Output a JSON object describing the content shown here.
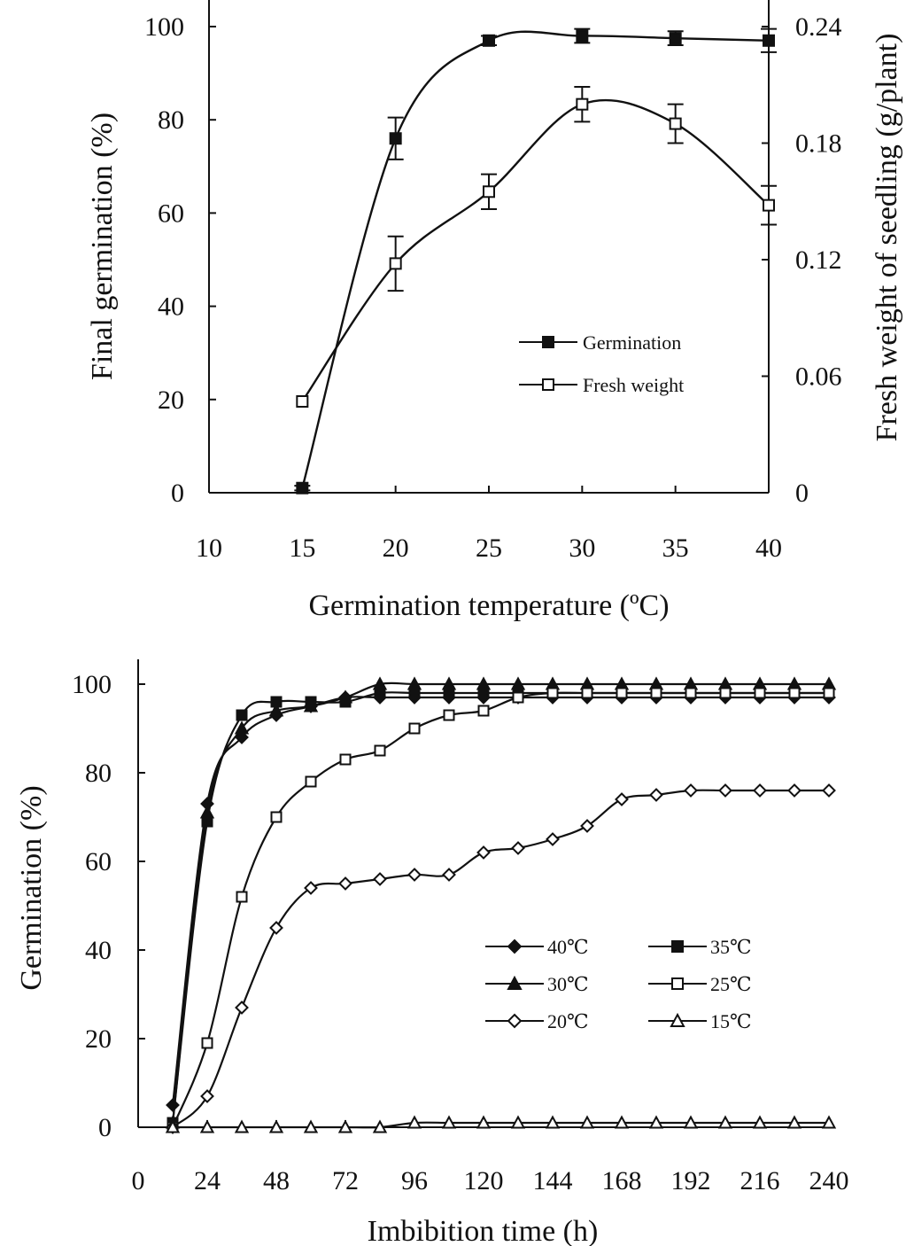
{
  "chart_data": [
    {
      "type": "line",
      "xlabel": "Germination temperature (ºC)",
      "ylabel": "Final germination (%)",
      "y2label": "Fresh weight of seedling (g/plant)",
      "xlim": [
        10,
        40
      ],
      "ylim": [
        0,
        100
      ],
      "y2lim": [
        0,
        0.24
      ],
      "x_ticks": [
        "10",
        "15",
        "20",
        "25",
        "30",
        "35",
        "40"
      ],
      "y_ticks": [
        "0",
        "20",
        "40",
        "60",
        "80",
        "100"
      ],
      "y2_ticks": [
        "0",
        "0.06",
        "0.12",
        "0.18",
        "0.24"
      ],
      "legend_position": "center-right",
      "series": [
        {
          "name": "Germination",
          "axis": "left",
          "marker": "filled-square",
          "x": [
            15,
            20,
            25,
            30,
            35,
            40
          ],
          "y": [
            1,
            76,
            97,
            98,
            97.5,
            97
          ],
          "error": [
            0.5,
            4.5,
            1,
            1.5,
            1.5,
            2.5
          ]
        },
        {
          "name": "Fresh weight",
          "axis": "right",
          "marker": "open-square",
          "x": [
            15,
            20,
            25,
            30,
            35,
            40
          ],
          "y": [
            0.047,
            0.118,
            0.155,
            0.2,
            0.19,
            0.148
          ],
          "error": [
            0,
            0.014,
            0.009,
            0.009,
            0.01,
            0.01
          ]
        }
      ]
    },
    {
      "type": "line",
      "xlabel": "Imbibition time (h)",
      "ylabel": "Germination (%)",
      "xlim": [
        0,
        240
      ],
      "ylim": [
        0,
        100
      ],
      "x_ticks": [
        "0",
        "24",
        "48",
        "72",
        "96",
        "120",
        "144",
        "168",
        "192",
        "216",
        "240"
      ],
      "y_ticks": [
        "0",
        "20",
        "40",
        "60",
        "80",
        "100"
      ],
      "legend_position": "center-right",
      "series": [
        {
          "name": "40℃",
          "marker": "filled-diamond",
          "x": [
            12,
            24,
            36,
            48,
            60,
            72,
            84,
            96,
            108,
            120,
            132,
            144,
            156,
            168,
            180,
            192,
            204,
            216,
            228,
            240
          ],
          "y": [
            5,
            73,
            88,
            93,
            95,
            97,
            97,
            97,
            97,
            97,
            97,
            97,
            97,
            97,
            97,
            97,
            97,
            97,
            97,
            97
          ]
        },
        {
          "name": "35℃",
          "marker": "filled-square",
          "x": [
            12,
            24,
            36,
            48,
            60,
            72,
            84,
            96,
            108,
            120,
            132,
            144,
            156,
            168,
            180,
            192,
            204,
            216,
            228,
            240
          ],
          "y": [
            1,
            69,
            93,
            96,
            96,
            96,
            98,
            98,
            98,
            98,
            98,
            98,
            98,
            98,
            98,
            98,
            98,
            98,
            98,
            98
          ]
        },
        {
          "name": "30℃",
          "marker": "filled-triangle",
          "x": [
            12,
            24,
            36,
            48,
            60,
            72,
            84,
            96,
            108,
            120,
            132,
            144,
            156,
            168,
            180,
            192,
            204,
            216,
            228,
            240
          ],
          "y": [
            1,
            71,
            90,
            94,
            95,
            97,
            100,
            100,
            100,
            100,
            100,
            100,
            100,
            100,
            100,
            100,
            100,
            100,
            100,
            100
          ]
        },
        {
          "name": "25℃",
          "marker": "open-square",
          "x": [
            12,
            24,
            36,
            48,
            60,
            72,
            84,
            96,
            108,
            120,
            132,
            144,
            156,
            168,
            180,
            192,
            204,
            216,
            228,
            240
          ],
          "y": [
            0,
            19,
            52,
            70,
            78,
            83,
            85,
            90,
            93,
            94,
            97,
            98,
            98,
            98,
            98,
            98,
            98,
            98,
            98,
            98
          ]
        },
        {
          "name": "20℃",
          "marker": "open-diamond",
          "x": [
            12,
            24,
            36,
            48,
            60,
            72,
            84,
            96,
            108,
            120,
            132,
            144,
            156,
            168,
            180,
            192,
            204,
            216,
            228,
            240
          ],
          "y": [
            0,
            7,
            27,
            45,
            54,
            55,
            56,
            57,
            57,
            62,
            63,
            65,
            68,
            74,
            75,
            76,
            76,
            76,
            76,
            76
          ]
        },
        {
          "name": "15℃",
          "marker": "open-triangle",
          "x": [
            12,
            24,
            36,
            48,
            60,
            72,
            84,
            96,
            108,
            120,
            132,
            144,
            156,
            168,
            180,
            192,
            204,
            216,
            228,
            240
          ],
          "y": [
            0,
            0,
            0,
            0,
            0,
            0,
            0,
            1,
            1,
            1,
            1,
            1,
            1,
            1,
            1,
            1,
            1,
            1,
            1,
            1
          ]
        }
      ]
    }
  ]
}
